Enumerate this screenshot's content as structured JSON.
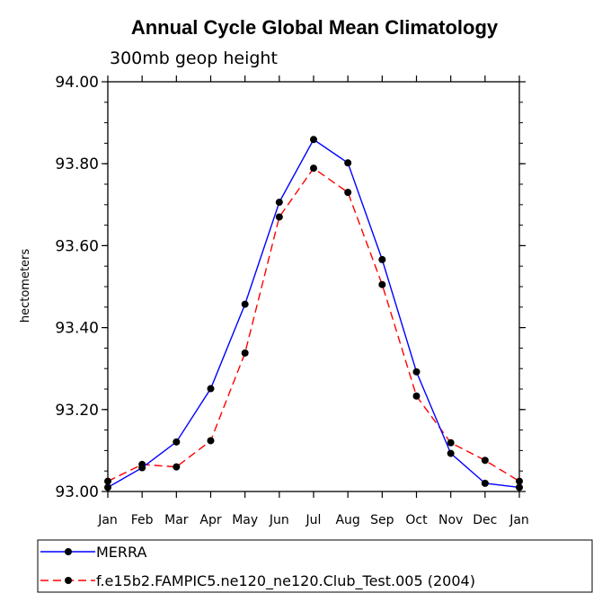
{
  "chart_data": {
    "type": "line",
    "title": "Annual Cycle Global Mean Climatology",
    "subtitle": "300mb geop height",
    "ylabel": "hectometers",
    "xlabel": "",
    "categories": [
      "Jan",
      "Feb",
      "Mar",
      "Apr",
      "May",
      "Jun",
      "Jul",
      "Aug",
      "Sep",
      "Oct",
      "Nov",
      "Dec",
      "Jan"
    ],
    "ylim": [
      93.0,
      94.0
    ],
    "yticks": [
      "93.00",
      "93.20",
      "93.40",
      "93.60",
      "93.80",
      "94.00"
    ],
    "grid": false,
    "legend_position": "bottom",
    "series": [
      {
        "name": "MERRA",
        "color": "#0000ff",
        "line_style": "solid",
        "marker": "filled-circle",
        "values": [
          93.01,
          93.058,
          93.121,
          93.251,
          93.457,
          93.706,
          93.859,
          93.802,
          93.566,
          93.292,
          93.093,
          93.02,
          93.01
        ]
      },
      {
        "name": "f.e15b2.FAMPIC5.ne120_ne120.Club_Test.005 (2004)",
        "color": "#ff0000",
        "line_style": "dashed",
        "marker": "filled-circle",
        "values": [
          93.025,
          93.066,
          93.06,
          93.124,
          93.338,
          93.67,
          93.789,
          93.73,
          93.505,
          93.233,
          93.119,
          93.076,
          93.025
        ]
      }
    ]
  }
}
